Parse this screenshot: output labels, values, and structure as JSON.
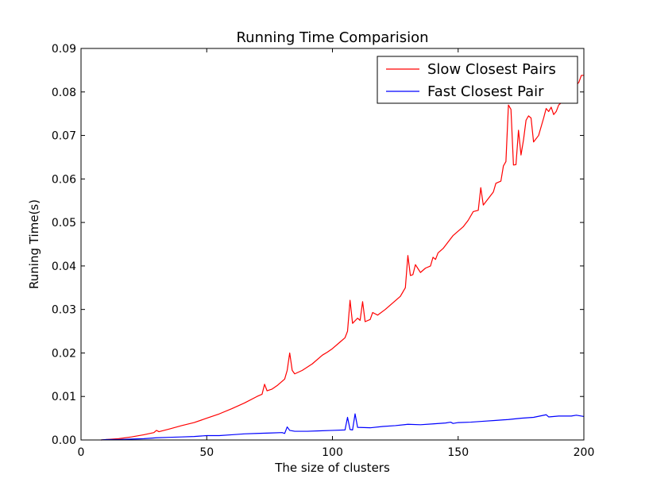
{
  "chart_data": {
    "type": "line",
    "title": "Running Time Comparision",
    "xlabel": "The size of clusters",
    "ylabel": "Runing Time(s)",
    "xlim": [
      0,
      200
    ],
    "ylim": [
      0,
      0.09
    ],
    "xticks": [
      "0",
      "50",
      "100",
      "150",
      "200"
    ],
    "yticks": [
      "0.00",
      "0.01",
      "0.02",
      "0.03",
      "0.04",
      "0.05",
      "0.06",
      "0.07",
      "0.08",
      "0.09"
    ],
    "grid": false,
    "legend_position": "top-right",
    "series": [
      {
        "name": "Slow Closest Pairs",
        "color": "#ff0000",
        "points": [
          [
            8,
            0.0
          ],
          [
            10,
            0.0001
          ],
          [
            15,
            0.0003
          ],
          [
            20,
            0.0007
          ],
          [
            25,
            0.0012
          ],
          [
            29,
            0.0017
          ],
          [
            30,
            0.0022
          ],
          [
            31,
            0.0019
          ],
          [
            35,
            0.0025
          ],
          [
            40,
            0.0033
          ],
          [
            45,
            0.004
          ],
          [
            50,
            0.005
          ],
          [
            55,
            0.006
          ],
          [
            60,
            0.0072
          ],
          [
            65,
            0.0085
          ],
          [
            70,
            0.01
          ],
          [
            72,
            0.0105
          ],
          [
            73,
            0.0128
          ],
          [
            74,
            0.0113
          ],
          [
            76,
            0.0117
          ],
          [
            78,
            0.0125
          ],
          [
            80,
            0.0135
          ],
          [
            81,
            0.014
          ],
          [
            82,
            0.016
          ],
          [
            83,
            0.02
          ],
          [
            84,
            0.016
          ],
          [
            85,
            0.0152
          ],
          [
            88,
            0.016
          ],
          [
            92,
            0.0175
          ],
          [
            96,
            0.0195
          ],
          [
            98,
            0.0202
          ],
          [
            100,
            0.021
          ],
          [
            103,
            0.0225
          ],
          [
            105,
            0.0235
          ],
          [
            106,
            0.025
          ],
          [
            107,
            0.0321
          ],
          [
            108,
            0.0268
          ],
          [
            110,
            0.028
          ],
          [
            111,
            0.0275
          ],
          [
            112,
            0.0318
          ],
          [
            113,
            0.0272
          ],
          [
            115,
            0.0277
          ],
          [
            116,
            0.0293
          ],
          [
            118,
            0.0287
          ],
          [
            121,
            0.03
          ],
          [
            124,
            0.0315
          ],
          [
            127,
            0.033
          ],
          [
            129,
            0.035
          ],
          [
            130,
            0.0424
          ],
          [
            131,
            0.0378
          ],
          [
            132,
            0.038
          ],
          [
            133,
            0.0403
          ],
          [
            135,
            0.0385
          ],
          [
            137,
            0.0395
          ],
          [
            139,
            0.04
          ],
          [
            140,
            0.042
          ],
          [
            141,
            0.0415
          ],
          [
            142,
            0.043
          ],
          [
            144,
            0.044
          ],
          [
            146,
            0.0455
          ],
          [
            148,
            0.047
          ],
          [
            150,
            0.048
          ],
          [
            152,
            0.049
          ],
          [
            154,
            0.0505
          ],
          [
            156,
            0.0525
          ],
          [
            158,
            0.0528
          ],
          [
            159,
            0.058
          ],
          [
            160,
            0.054
          ],
          [
            162,
            0.0555
          ],
          [
            164,
            0.057
          ],
          [
            165,
            0.059
          ],
          [
            167,
            0.0595
          ],
          [
            168,
            0.063
          ],
          [
            169,
            0.064
          ],
          [
            170,
            0.077
          ],
          [
            171,
            0.076
          ],
          [
            172,
            0.0632
          ],
          [
            173,
            0.0633
          ],
          [
            174,
            0.0712
          ],
          [
            175,
            0.0655
          ],
          [
            176,
            0.069
          ],
          [
            177,
            0.0735
          ],
          [
            178,
            0.0745
          ],
          [
            179,
            0.074
          ],
          [
            180,
            0.0685
          ],
          [
            182,
            0.07
          ],
          [
            184,
            0.074
          ],
          [
            185,
            0.0762
          ],
          [
            186,
            0.0755
          ],
          [
            187,
            0.0765
          ],
          [
            188,
            0.0748
          ],
          [
            189,
            0.0755
          ],
          [
            190,
            0.077
          ],
          [
            192,
            0.078
          ],
          [
            194,
            0.08
          ],
          [
            196,
            0.081
          ],
          [
            198,
            0.0822
          ],
          [
            199,
            0.0838
          ],
          [
            200,
            0.0838
          ]
        ]
      },
      {
        "name": "Fast Closest Pair",
        "color": "#0000ff",
        "points": [
          [
            8,
            0.0
          ],
          [
            10,
            0.0001
          ],
          [
            15,
            0.0001
          ],
          [
            20,
            0.0002
          ],
          [
            25,
            0.0003
          ],
          [
            30,
            0.0005
          ],
          [
            35,
            0.0006
          ],
          [
            40,
            0.0007
          ],
          [
            45,
            0.0008
          ],
          [
            50,
            0.001
          ],
          [
            55,
            0.001
          ],
          [
            60,
            0.0012
          ],
          [
            65,
            0.0014
          ],
          [
            70,
            0.0015
          ],
          [
            75,
            0.0016
          ],
          [
            80,
            0.0017
          ],
          [
            81,
            0.0015
          ],
          [
            82,
            0.003
          ],
          [
            83,
            0.0022
          ],
          [
            85,
            0.002
          ],
          [
            90,
            0.002
          ],
          [
            95,
            0.0021
          ],
          [
            100,
            0.0022
          ],
          [
            105,
            0.0023
          ],
          [
            106,
            0.0052
          ],
          [
            107,
            0.0024
          ],
          [
            108,
            0.0023
          ],
          [
            109,
            0.006
          ],
          [
            110,
            0.0029
          ],
          [
            115,
            0.0028
          ],
          [
            120,
            0.0031
          ],
          [
            125,
            0.0033
          ],
          [
            130,
            0.0036
          ],
          [
            135,
            0.0035
          ],
          [
            140,
            0.0037
          ],
          [
            145,
            0.0039
          ],
          [
            147,
            0.0041
          ],
          [
            148,
            0.0038
          ],
          [
            150,
            0.004
          ],
          [
            155,
            0.0041
          ],
          [
            160,
            0.0043
          ],
          [
            165,
            0.0045
          ],
          [
            170,
            0.0047
          ],
          [
            175,
            0.005
          ],
          [
            180,
            0.0052
          ],
          [
            185,
            0.0058
          ],
          [
            186,
            0.0053
          ],
          [
            190,
            0.0055
          ],
          [
            195,
            0.0055
          ],
          [
            197,
            0.0057
          ],
          [
            200,
            0.0054
          ]
        ]
      }
    ]
  }
}
